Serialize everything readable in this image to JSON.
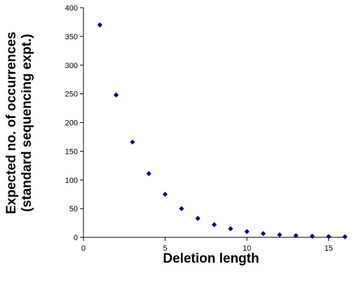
{
  "chart_data": {
    "type": "scatter",
    "title": "",
    "xlabel": "Deletion length",
    "ylabel_line1": "Expected no. of occurrences",
    "ylabel_line2": "(standard sequencing expt.)",
    "xlim": [
      0,
      16
    ],
    "ylim": [
      0,
      400
    ],
    "xticks": [
      0,
      5,
      10,
      15
    ],
    "yticks": [
      0,
      50,
      100,
      150,
      200,
      250,
      300,
      350,
      400
    ],
    "grid": false,
    "legend": "none",
    "marker": "diamond",
    "color": "#000080",
    "x": [
      1,
      2,
      3,
      4,
      5,
      6,
      7,
      8,
      9,
      10,
      11,
      12,
      13,
      14,
      15,
      16
    ],
    "y": [
      370,
      248,
      166,
      111,
      75,
      50,
      33,
      22,
      15,
      10,
      6.5,
      4.5,
      3,
      2,
      1.4,
      1
    ]
  }
}
